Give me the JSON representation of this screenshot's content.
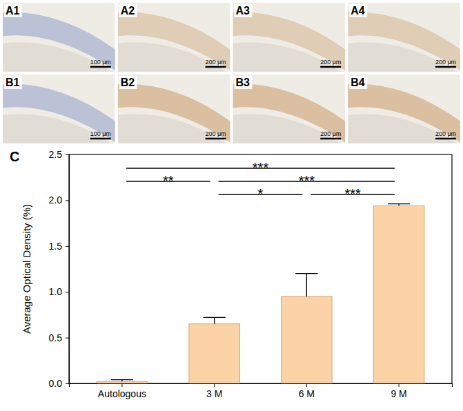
{
  "panels": [
    {
      "label": "A1",
      "scale_bar": "100 μm"
    },
    {
      "label": "A2",
      "scale_bar": "200 μm"
    },
    {
      "label": "A3",
      "scale_bar": "200 μm"
    },
    {
      "label": "A4",
      "scale_bar": "200 μm"
    },
    {
      "label": "B1",
      "scale_bar": "100 μm"
    },
    {
      "label": "B2",
      "scale_bar": "200 μm"
    },
    {
      "label": "B3",
      "scale_bar": "200 μm"
    },
    {
      "label": "B4",
      "scale_bar": "200 μm"
    }
  ],
  "chart_data": {
    "type": "bar",
    "panel_label": "C",
    "y_label": "Average Optical Density (%)",
    "categories": [
      "Autologous",
      "3 M",
      "6 M",
      "9 M"
    ],
    "values": [
      0.02,
      0.65,
      0.95,
      1.94
    ],
    "errors": [
      0.02,
      0.07,
      0.25,
      0.02
    ],
    "color": "#fbd3a6",
    "ylim": [
      0,
      2.5
    ],
    "yticks": [
      {
        "value": 0,
        "label": "0.0"
      },
      0.5,
      {
        "value": 1,
        "label": "1.0"
      },
      1.5,
      {
        "value": 2,
        "label": "2.0"
      },
      2.5
    ],
    "annotations": [
      {
        "from": "Autologous",
        "to": "9 M",
        "label": "***"
      },
      {
        "from": "Autologous",
        "to": "3 M",
        "label": "**"
      },
      {
        "from": "3 M",
        "to": "9 M",
        "label": "***"
      },
      {
        "from": "3 M",
        "to": "6 M",
        "label": "*"
      },
      {
        "from": "6 M",
        "to": "9 M",
        "label": "***"
      }
    ]
  }
}
